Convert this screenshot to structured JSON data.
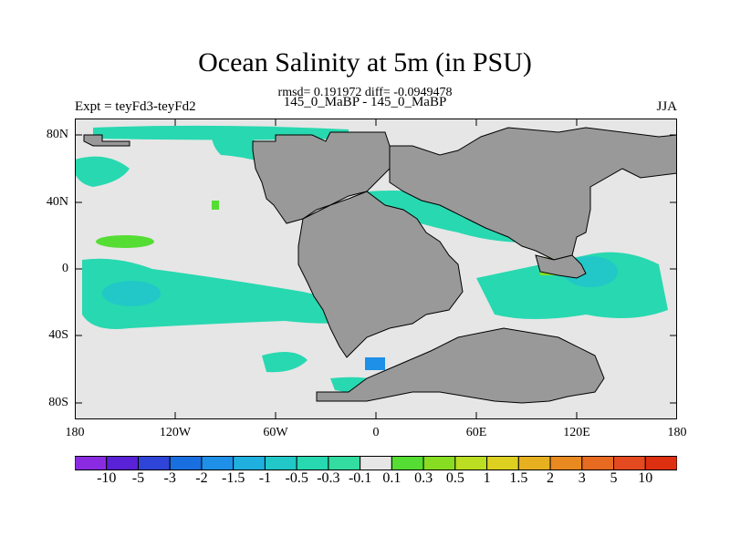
{
  "title": "Ocean Salinity at 5m (in PSU)",
  "stats": "rmsd= 0.191972 diff= -0.0949478",
  "left_label": "Expt = teyFd3-teyFd2",
  "center_label": "145_0_MaBP - 145_0_MaBP",
  "right_label": "JJA",
  "map": {
    "lat_ticks": [
      "80N",
      "40N",
      "0",
      "40S",
      "80S"
    ],
    "lon_ticks": [
      "180",
      "120W",
      "60W",
      "0",
      "60E",
      "120E",
      "180"
    ],
    "ocean_color": "#e6e6e6",
    "land_color": "#999999"
  },
  "colorbar": {
    "labels": [
      "-10",
      "-5",
      "-3",
      "-2",
      "-1.5",
      "-1",
      "-0.5",
      "-0.3",
      "-0.1",
      "0.1",
      "0.3",
      "0.5",
      "1",
      "1.5",
      "2",
      "3",
      "5",
      "10"
    ],
    "colors": [
      "#8a2be2",
      "#5a22d6",
      "#2f45d8",
      "#1a6fe0",
      "#1e90e8",
      "#20b0e0",
      "#22c8c8",
      "#28d8b0",
      "#33dca0",
      "#e6e6e6",
      "#55dd33",
      "#88dd22",
      "#bbdd22",
      "#ddd020",
      "#e6b020",
      "#e88a20",
      "#e66a20",
      "#e44a20",
      "#dd3010"
    ]
  },
  "chart_data": {
    "type": "heatmap",
    "title": "Ocean Salinity at 5m (in PSU)",
    "subtitle": "rmsd= 0.191972 diff= -0.0949478",
    "xlim": [
      -180,
      180
    ],
    "ylim": [
      -90,
      90
    ],
    "xticks": [
      "180",
      "120W",
      "60W",
      "0",
      "60E",
      "120E",
      "180"
    ],
    "yticks": [
      "80N",
      "40N",
      "0",
      "40S",
      "80S"
    ],
    "levels": [
      -10,
      -5,
      -3,
      -2,
      -1.5,
      -1,
      -0.5,
      -0.3,
      -0.1,
      0.1,
      0.3,
      0.5,
      1,
      1.5,
      2,
      3,
      5,
      10
    ],
    "features": [
      {
        "name": "north_pacific_fresh",
        "lon": [
          -170,
          -150
        ],
        "lat": [
          50,
          65
        ],
        "value": -0.2
      },
      {
        "name": "south_pacific_fresh",
        "lon": [
          -165,
          -100
        ],
        "lat": [
          -35,
          0
        ],
        "value": -0.6
      },
      {
        "name": "indian_ocean_fresh",
        "lon": [
          100,
          170
        ],
        "lat": [
          -35,
          5
        ],
        "value": -0.7
      },
      {
        "name": "southern_ocean_fresh",
        "lon": [
          -10,
          0
        ],
        "lat": [
          -65,
          -55
        ],
        "value": -2.0
      },
      {
        "name": "pacific_salty_patch",
        "lon": [
          -160,
          -125
        ],
        "lat": [
          15,
          25
        ],
        "value": 0.4
      },
      {
        "name": "tethys_salty",
        "lon": [
          95,
          115
        ],
        "lat": [
          0,
          10
        ],
        "value": 0.5
      }
    ]
  }
}
